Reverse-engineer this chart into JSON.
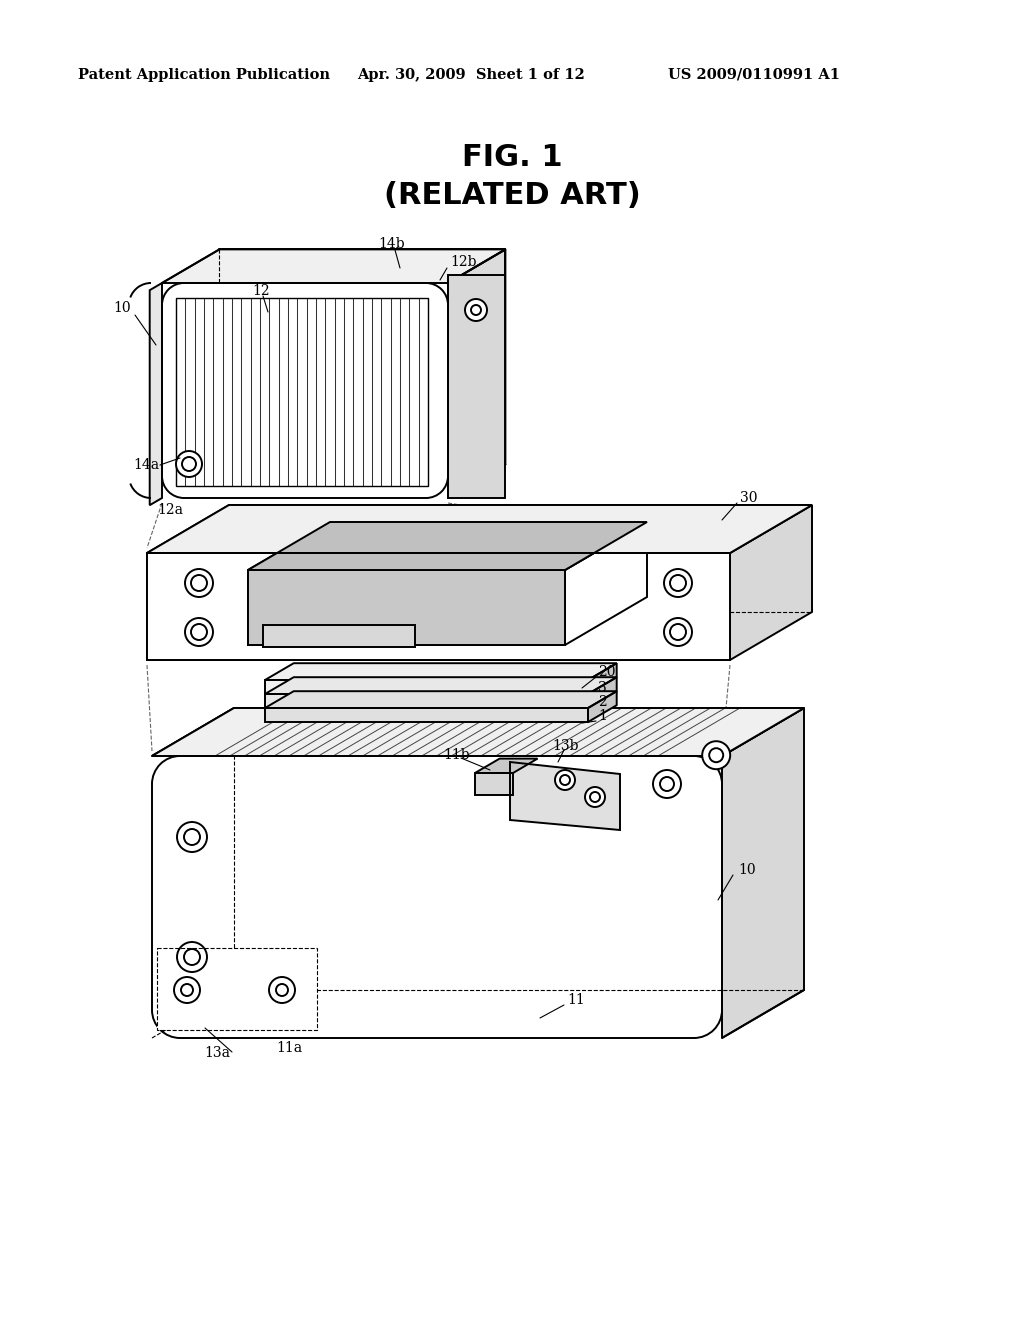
{
  "title_line1": "FIG. 1",
  "title_line2": "(RELATED ART)",
  "header_left": "Patent Application Publication",
  "header_mid": "Apr. 30, 2009  Sheet 1 of 12",
  "header_right": "US 2009/0110991 A1",
  "bg_color": "#ffffff",
  "line_color": "#000000",
  "lw_main": 1.4,
  "lw_thin": 0.9,
  "lw_dash": 0.8
}
